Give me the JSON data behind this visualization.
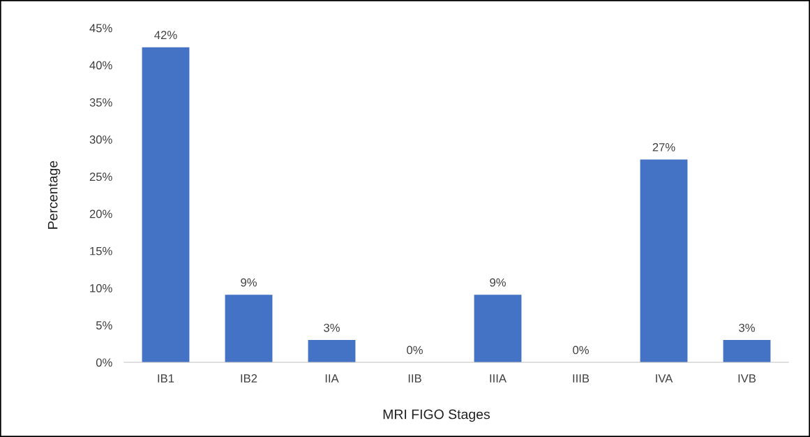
{
  "chart_data": {
    "type": "bar",
    "xlabel": "MRI FIGO Stages",
    "ylabel": "Percentage",
    "categories": [
      "IB1",
      "IB2",
      "IIA",
      "IIB",
      "IIIA",
      "IIIB",
      "IVA",
      "IVB"
    ],
    "values": [
      42.4,
      9.1,
      3.0,
      0,
      9.1,
      0,
      27.3,
      3.0
    ],
    "value_labels": [
      "42%",
      "9%",
      "3%",
      "0%",
      "9%",
      "0%",
      "27%",
      "3%"
    ],
    "color": "#4472c4",
    "ylim": [
      0,
      45
    ],
    "yticks": [
      {
        "value": 0,
        "label": "0%"
      },
      {
        "value": 5,
        "label": "5%"
      },
      {
        "value": 10,
        "label": "10%"
      },
      {
        "value": 15,
        "label": "15%"
      },
      {
        "value": 20,
        "label": "20%"
      },
      {
        "value": 25,
        "label": "25%"
      },
      {
        "value": 30,
        "label": "30%"
      },
      {
        "value": 35,
        "label": "35%"
      },
      {
        "value": 40,
        "label": "40%"
      },
      {
        "value": 45,
        "label": "45%"
      }
    ],
    "grid": false,
    "legend": false
  }
}
